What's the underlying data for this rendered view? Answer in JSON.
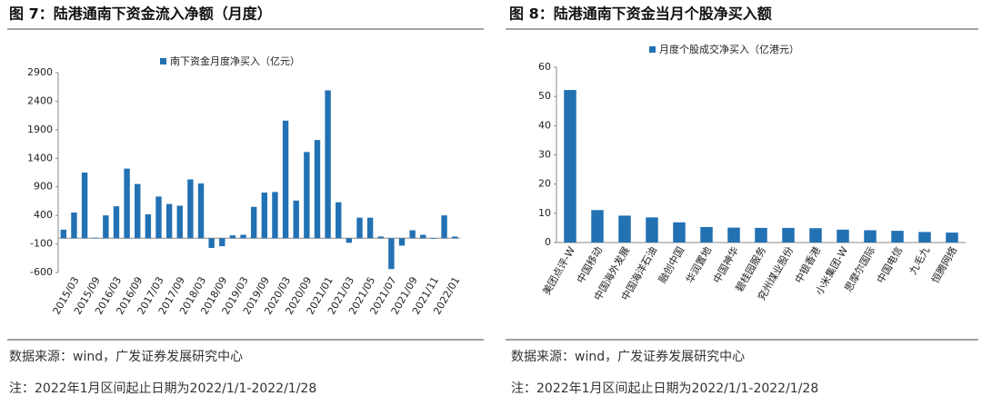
{
  "chart_data": [
    {
      "type": "bar",
      "title": "图 7：陆港通南下资金流入净额（月度）",
      "legend": "南下资金月度净买入（亿元）",
      "color": "#2271b3",
      "categories": [
        null,
        "2015/03",
        null,
        "2015/09",
        null,
        "2016/03",
        null,
        "2016/09",
        null,
        "2017/03",
        null,
        "2017/09",
        null,
        "2018/03",
        null,
        "2018/09",
        null,
        "2019/03",
        null,
        "2019/09",
        null,
        "2020/03",
        null,
        "2020/09",
        null,
        "2021/01",
        null,
        "2021/03",
        null,
        "2021/05",
        null,
        "2021/07",
        null,
        "2021/09",
        null,
        "2021/11",
        null,
        "2022/01"
      ],
      "values": [
        150,
        450,
        1150,
        10,
        400,
        560,
        1220,
        950,
        420,
        730,
        600,
        570,
        1030,
        960,
        -170,
        -140,
        50,
        60,
        550,
        800,
        810,
        2060,
        660,
        1510,
        1720,
        2590,
        630,
        -80,
        360,
        360,
        30,
        -540,
        -130,
        140,
        60,
        -10,
        400,
        30
      ],
      "ylim": [
        -600,
        2900
      ],
      "yticks": [
        -600,
        -100,
        400,
        900,
        1400,
        1900,
        2400,
        2900
      ]
    },
    {
      "type": "bar",
      "title": "图 8：陆港通南下资金当月个股净买入额",
      "legend": "月度个股成交净买入（亿港元）",
      "color": "#2271b3",
      "categories": [
        "美团点评-W",
        "中国移动",
        "中国海外发展",
        "中国海洋石油",
        "融创中国",
        "华润置地",
        "中国神华",
        "碧桂园服务",
        "兖州煤业股份",
        "中银香港",
        "小米集团-W",
        "思摩尔国际",
        "中国电信",
        "九毛九",
        "恒腾网络"
      ],
      "values": [
        52.2,
        11.1,
        9.2,
        8.6,
        6.9,
        5.3,
        5.1,
        5.0,
        5.0,
        4.9,
        4.4,
        4.2,
        4.0,
        3.6,
        3.4
      ],
      "ylim": [
        0,
        60
      ],
      "yticks": [
        0,
        10,
        20,
        30,
        40,
        50,
        60
      ]
    }
  ],
  "sources": [
    "数据来源：wind，广发证券发展研究中心",
    "数据来源：wind，广发证券发展研究中心"
  ],
  "notes": [
    "注：2022年1月区间起止日期为2022/1/1-2022/1/28",
    "注：2022年1月区间起止日期为2022/1/1-2022/1/28"
  ]
}
